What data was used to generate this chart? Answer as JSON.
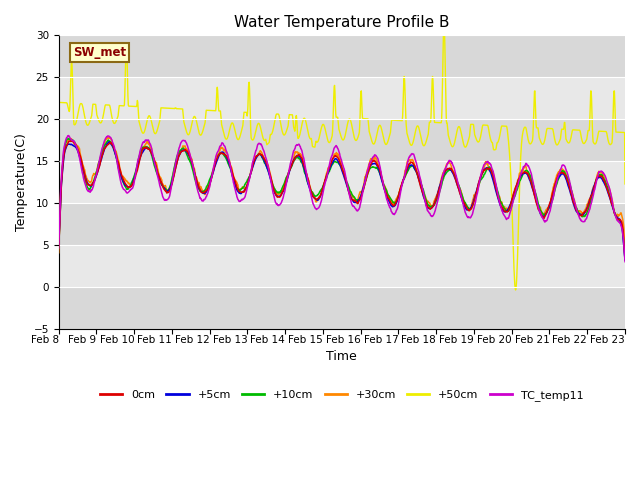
{
  "title": "Water Temperature Profile B",
  "xlabel": "Time",
  "ylabel": "Temperature(C)",
  "ylim": [
    -5,
    30
  ],
  "yticks": [
    -5,
    0,
    5,
    10,
    15,
    20,
    25,
    30
  ],
  "date_labels": [
    "Feb 8",
    "Feb 9",
    "Feb 10",
    "Feb 11",
    "Feb 12",
    "Feb 13",
    "Feb 14",
    "Feb 15",
    "Feb 16",
    "Feb 17",
    "Feb 18",
    "Feb 19",
    "Feb 20",
    "Feb 21",
    "Feb 22",
    "Feb 23"
  ],
  "n_points": 1440,
  "swmet_label": "SW_met",
  "line_colors": {
    "0cm": "#dd0000",
    "+5cm": "#0000dd",
    "+10cm": "#00bb00",
    "+30cm": "#ff8800",
    "+50cm": "#eeee00",
    "TC_temp11": "#cc00cc"
  },
  "legend_labels": [
    "0cm",
    "+5cm",
    "+10cm",
    "+30cm",
    "+50cm",
    "TC_temp11"
  ],
  "bg_color": "#ffffff",
  "plot_bg_color": "#e0e0e0",
  "title_fontsize": 11,
  "axis_fontsize": 9,
  "tick_fontsize": 7.5
}
